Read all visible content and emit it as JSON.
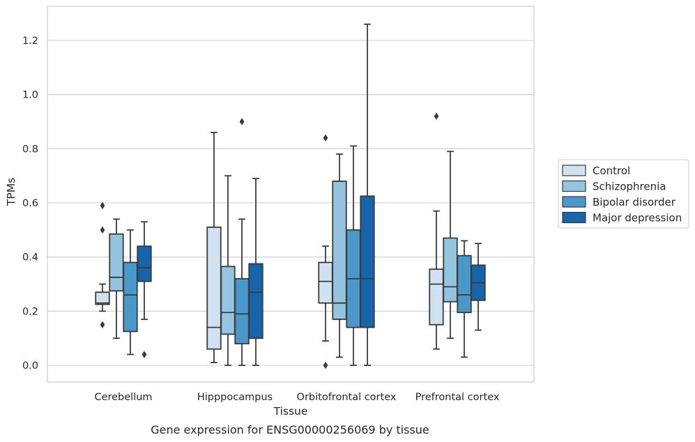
{
  "chart_data": {
    "type": "box",
    "caption": "Gene expression for ENSG00000256069 by tissue",
    "xlabel": "Tissue",
    "ylabel": "TPMs",
    "ylim": [
      -0.06,
      1.3
    ],
    "yticks": [
      0.0,
      0.2,
      0.4,
      0.6,
      0.8,
      1.0,
      1.2
    ],
    "ytick_labels": [
      "0.0",
      "0.2",
      "0.4",
      "0.6",
      "0.8",
      "1.0",
      "1.2"
    ],
    "grid": "horizontal",
    "legend_placement": "right",
    "categories": [
      "Cerebellum",
      "Hipppocampus",
      "Orbitofrontal cortex",
      "Prefrontal cortex"
    ],
    "series": [
      {
        "name": "Control",
        "color": "#d0e1f2",
        "boxes": [
          {
            "whislo": 0.2,
            "q1": 0.225,
            "med": 0.23,
            "q3": 0.27,
            "whishi": 0.3,
            "fliers": [
              0.59,
              0.5,
              0.15
            ]
          },
          {
            "whislo": 0.01,
            "q1": 0.06,
            "med": 0.14,
            "q3": 0.51,
            "whishi": 0.86,
            "fliers": []
          },
          {
            "whislo": 0.09,
            "q1": 0.23,
            "med": 0.31,
            "q3": 0.38,
            "whishi": 0.44,
            "fliers": [
              0.84,
              0.0
            ]
          },
          {
            "whislo": 0.06,
            "q1": 0.15,
            "med": 0.3,
            "q3": 0.355,
            "whishi": 0.57,
            "fliers": [
              0.92
            ]
          }
        ]
      },
      {
        "name": "Schizophrenia",
        "color": "#94c4df",
        "boxes": [
          {
            "whislo": 0.1,
            "q1": 0.275,
            "med": 0.325,
            "q3": 0.485,
            "whishi": 0.54,
            "fliers": []
          },
          {
            "whislo": 0.0,
            "q1": 0.115,
            "med": 0.195,
            "q3": 0.365,
            "whishi": 0.7,
            "fliers": []
          },
          {
            "whislo": 0.03,
            "q1": 0.17,
            "med": 0.23,
            "q3": 0.68,
            "whishi": 0.78,
            "fliers": []
          },
          {
            "whislo": 0.1,
            "q1": 0.235,
            "med": 0.29,
            "q3": 0.47,
            "whishi": 0.79,
            "fliers": []
          }
        ]
      },
      {
        "name": "Bipolar disorder",
        "color": "#4a98c9",
        "boxes": [
          {
            "whislo": 0.04,
            "q1": 0.125,
            "med": 0.26,
            "q3": 0.38,
            "whishi": 0.5,
            "fliers": []
          },
          {
            "whislo": 0.0,
            "q1": 0.08,
            "med": 0.19,
            "q3": 0.32,
            "whishi": 0.54,
            "fliers": [
              0.9
            ]
          },
          {
            "whislo": 0.0,
            "q1": 0.14,
            "med": 0.32,
            "q3": 0.5,
            "whishi": 0.81,
            "fliers": []
          },
          {
            "whislo": 0.03,
            "q1": 0.195,
            "med": 0.26,
            "q3": 0.405,
            "whishi": 0.46,
            "fliers": []
          }
        ]
      },
      {
        "name": "Major depression",
        "color": "#1764ab",
        "boxes": [
          {
            "whislo": 0.17,
            "q1": 0.31,
            "med": 0.36,
            "q3": 0.44,
            "whishi": 0.53,
            "fliers": [
              0.04
            ]
          },
          {
            "whislo": 0.0,
            "q1": 0.1,
            "med": 0.27,
            "q3": 0.375,
            "whishi": 0.69,
            "fliers": []
          },
          {
            "whislo": 0.0,
            "q1": 0.14,
            "med": 0.32,
            "q3": 0.625,
            "whishi": 1.26,
            "fliers": []
          },
          {
            "whislo": 0.13,
            "q1": 0.24,
            "med": 0.305,
            "q3": 0.37,
            "whishi": 0.45,
            "fliers": []
          }
        ]
      }
    ]
  },
  "colors": {
    "grid": "#cccccc",
    "frame": "#cccccc",
    "box_edge": "#3a3a3a",
    "legend_border": "#cccccc"
  }
}
